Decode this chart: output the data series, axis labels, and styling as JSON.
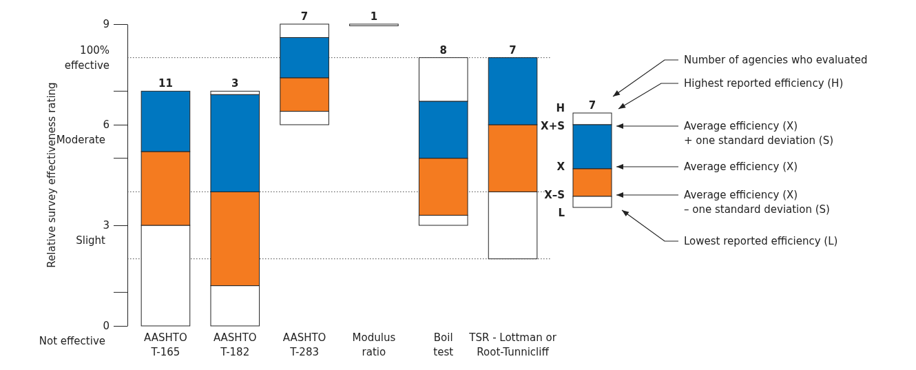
{
  "chart_data": {
    "type": "bar",
    "ylabel": "Relative survey effectiveness rating",
    "categories": [
      "AASHTO\nT-165",
      "AASHTO\nT-182",
      "AASHTO\nT-283",
      "Modulus\nratio",
      "Boil\ntest",
      "TSR - Lottman or\nRoot-Tunnicliff"
    ],
    "series": [
      {
        "color": "#ffffff",
        "base": [
          0,
          0,
          6,
          8.95,
          3,
          2
        ],
        "values": [
          3,
          1.2,
          0.4,
          0.05,
          0.3,
          2
        ]
      },
      {
        "color": "#f47b20",
        "base": [
          3,
          1.2,
          6.4,
          null,
          3.3,
          4
        ],
        "values": [
          2.2,
          2.8,
          1.0,
          null,
          1.7,
          2
        ]
      },
      {
        "color": "#0077c0",
        "base": [
          5.2,
          4,
          7.4,
          null,
          5,
          6
        ],
        "values": [
          1.8,
          2.9,
          1.2,
          null,
          1.7,
          2
        ]
      },
      {
        "color": "#ffffff",
        "base": [
          null,
          6.9,
          8.6,
          null,
          6.7,
          null
        ],
        "values": [
          null,
          0.1,
          0.4,
          null,
          1.3,
          null
        ]
      }
    ],
    "ylim": [
      0,
      9
    ],
    "yticks": [
      0,
      3,
      6,
      9
    ],
    "ref_lines": [
      {
        "axis": "y",
        "value": 2,
        "line_style": "dotted"
      },
      {
        "axis": "y",
        "value": 4,
        "line_style": "dotted"
      },
      {
        "axis": "y",
        "value": 8,
        "line_style": "dotted",
        "label": "100%\neffective"
      }
    ],
    "annotations": [
      "Not effective",
      "Slight",
      "Moderate",
      {
        "text": "11",
        "x": "AASHTO\nT-165",
        "y": 7
      },
      {
        "text": "3",
        "x": "AASHTO\nT-182",
        "y": 7
      },
      {
        "text": "7",
        "x": "AASHTO\nT-283",
        "y": 9
      },
      {
        "text": "1",
        "x": "Modulus\nratio",
        "y": 9
      },
      {
        "text": "8",
        "x": "Boil\ntest",
        "y": 8
      },
      {
        "text": "7",
        "x": "TSR - Lottman or\nRoot-Tunnicliff",
        "y": 8
      },
      "H",
      "7",
      "X+S",
      "X",
      "X–S",
      "L",
      "Number of agencies who evaluated",
      "Highest reported efficiency (H)",
      "Average efficiency (X)\n+ one standard deviation (S)",
      "Average efficiency (X)",
      "Average efficiency (X)\n– one standard deviation (S)",
      "Lowest reported efficiency (L)"
    ]
  }
}
